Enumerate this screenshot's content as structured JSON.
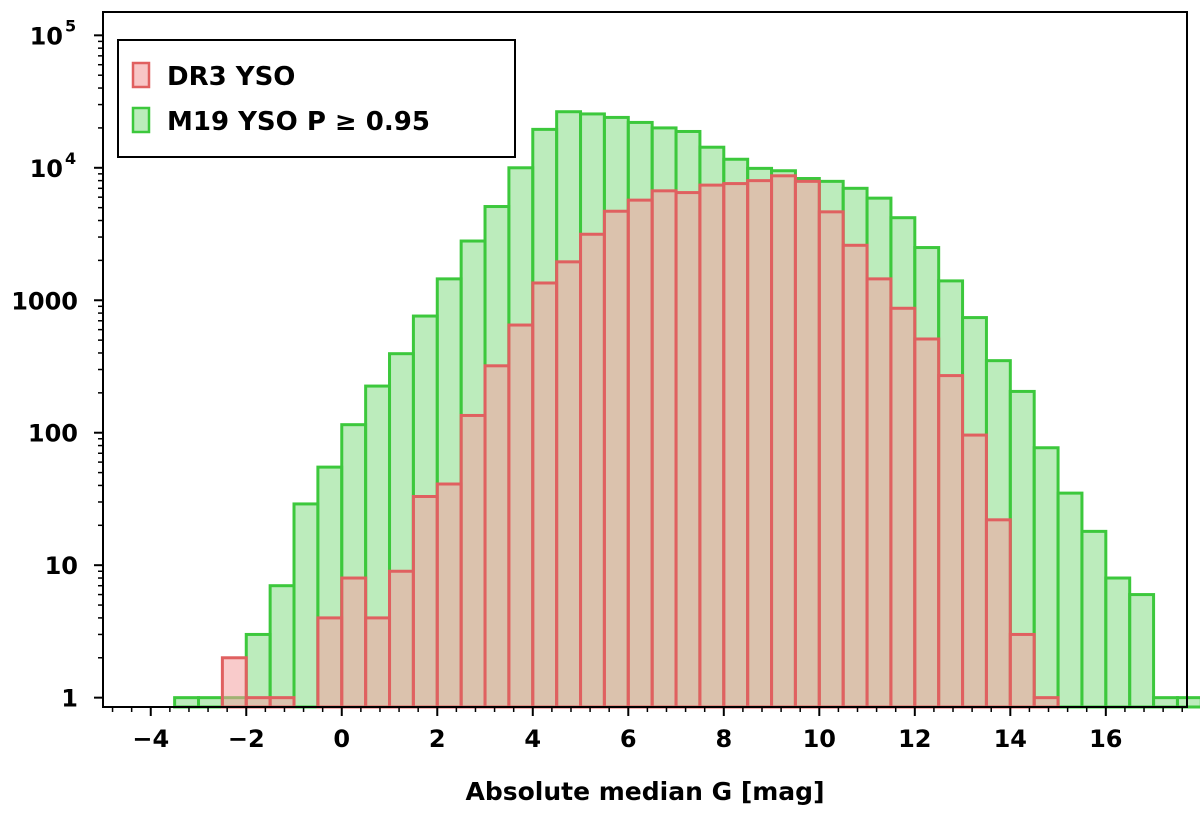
{
  "chart_data": {
    "type": "bar",
    "title": "",
    "xlabel": "Absolute median G [mag]",
    "ylabel": "",
    "xlim": [
      -5.0,
      17.7
    ],
    "ylim": [
      0.85,
      150000
    ],
    "yscale": "log",
    "bin_width": 0.5,
    "grid": false,
    "legend_position": "top-left",
    "x_ticks": [
      -4,
      -2,
      0,
      2,
      4,
      6,
      8,
      10,
      12,
      14,
      16
    ],
    "x_tick_labels": [
      "−4",
      "−2",
      "0",
      "2",
      "4",
      "6",
      "8",
      "10",
      "12",
      "14",
      "16"
    ],
    "y_ticks": [
      {
        "value": 1,
        "label": "1",
        "sup": ""
      },
      {
        "value": 10,
        "label": "10",
        "sup": ""
      },
      {
        "value": 100,
        "label": "100",
        "sup": ""
      },
      {
        "value": 1000,
        "label": "1000",
        "sup": ""
      },
      {
        "value": 10000,
        "label": "10",
        "sup": "4"
      },
      {
        "value": 100000,
        "label": "10",
        "sup": "5"
      }
    ],
    "series": [
      {
        "name": "DR3 YSO",
        "fill": "#f4a0a0",
        "stroke": "#e06060",
        "bins": [
          {
            "x": -2.5,
            "y": 2
          },
          {
            "x": -2.0,
            "y": 1
          },
          {
            "x": -1.5,
            "y": 1
          },
          {
            "x": -0.5,
            "y": 4
          },
          {
            "x": 0.0,
            "y": 8
          },
          {
            "x": 0.5,
            "y": 4
          },
          {
            "x": 1.0,
            "y": 9
          },
          {
            "x": 1.5,
            "y": 33
          },
          {
            "x": 2.0,
            "y": 41
          },
          {
            "x": 2.5,
            "y": 135
          },
          {
            "x": 3.0,
            "y": 320
          },
          {
            "x": 3.5,
            "y": 650
          },
          {
            "x": 4.0,
            "y": 1350
          },
          {
            "x": 4.5,
            "y": 1950
          },
          {
            "x": 5.0,
            "y": 3150
          },
          {
            "x": 5.5,
            "y": 4700
          },
          {
            "x": 6.0,
            "y": 5700
          },
          {
            "x": 6.5,
            "y": 6700
          },
          {
            "x": 7.0,
            "y": 6500
          },
          {
            "x": 7.5,
            "y": 7400
          },
          {
            "x": 8.0,
            "y": 7600
          },
          {
            "x": 8.5,
            "y": 8000
          },
          {
            "x": 9.0,
            "y": 8700
          },
          {
            "x": 9.5,
            "y": 7900
          },
          {
            "x": 10.0,
            "y": 4650
          },
          {
            "x": 10.5,
            "y": 2600
          },
          {
            "x": 11.0,
            "y": 1450
          },
          {
            "x": 11.5,
            "y": 870
          },
          {
            "x": 12.0,
            "y": 510
          },
          {
            "x": 12.5,
            "y": 270
          },
          {
            "x": 13.0,
            "y": 96
          },
          {
            "x": 13.5,
            "y": 22
          },
          {
            "x": 14.0,
            "y": 3
          },
          {
            "x": 14.5,
            "y": 1
          }
        ]
      },
      {
        "name": "M19 YSO P ≥ 0.95",
        "fill": "#8fe08f",
        "stroke": "#3cc83c",
        "bins": [
          {
            "x": -3.5,
            "y": 1
          },
          {
            "x": -3.0,
            "y": 1
          },
          {
            "x": -2.5,
            "y": 1
          },
          {
            "x": -2.0,
            "y": 3
          },
          {
            "x": -1.5,
            "y": 7
          },
          {
            "x": -1.0,
            "y": 29
          },
          {
            "x": -0.5,
            "y": 55
          },
          {
            "x": 0.0,
            "y": 115
          },
          {
            "x": 0.5,
            "y": 225
          },
          {
            "x": 1.0,
            "y": 395
          },
          {
            "x": 1.5,
            "y": 760
          },
          {
            "x": 2.0,
            "y": 1450
          },
          {
            "x": 2.5,
            "y": 2800
          },
          {
            "x": 3.0,
            "y": 5100
          },
          {
            "x": 3.5,
            "y": 10000
          },
          {
            "x": 4.0,
            "y": 19500
          },
          {
            "x": 4.5,
            "y": 26500
          },
          {
            "x": 5.0,
            "y": 25500
          },
          {
            "x": 5.5,
            "y": 24000
          },
          {
            "x": 6.0,
            "y": 22000
          },
          {
            "x": 6.5,
            "y": 20000
          },
          {
            "x": 7.0,
            "y": 18800
          },
          {
            "x": 7.5,
            "y": 14300
          },
          {
            "x": 8.0,
            "y": 11600
          },
          {
            "x": 8.5,
            "y": 9900
          },
          {
            "x": 9.0,
            "y": 9500
          },
          {
            "x": 9.5,
            "y": 8300
          },
          {
            "x": 10.0,
            "y": 7900
          },
          {
            "x": 10.5,
            "y": 7000
          },
          {
            "x": 11.0,
            "y": 5900
          },
          {
            "x": 11.5,
            "y": 4200
          },
          {
            "x": 12.0,
            "y": 2500
          },
          {
            "x": 12.5,
            "y": 1400
          },
          {
            "x": 13.0,
            "y": 740
          },
          {
            "x": 13.5,
            "y": 350
          },
          {
            "x": 14.0,
            "y": 205
          },
          {
            "x": 14.5,
            "y": 77
          },
          {
            "x": 15.0,
            "y": 35
          },
          {
            "x": 15.5,
            "y": 18
          },
          {
            "x": 16.0,
            "y": 8
          },
          {
            "x": 16.5,
            "y": 6
          },
          {
            "x": 17.0,
            "y": 1
          },
          {
            "x": 17.5,
            "y": 1
          }
        ]
      }
    ]
  }
}
